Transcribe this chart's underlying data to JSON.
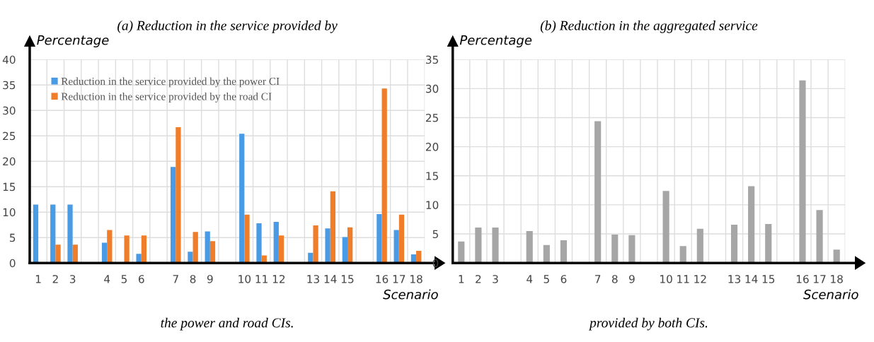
{
  "chart_data": [
    {
      "type": "bar",
      "title": "(a) Reduction in the service provided by",
      "ylabel": "Percentage",
      "xlabel": "Scenario",
      "categories": [
        "1",
        "2",
        "3",
        null,
        "4",
        "5",
        "6",
        null,
        "7",
        "8",
        "9",
        null,
        "10",
        "11",
        "12",
        null,
        "13",
        "14",
        "15",
        null,
        "16",
        "17",
        "18"
      ],
      "series": [
        {
          "name": "Reduction in the service provided by the power CI",
          "color": "#4a9be6",
          "values": [
            11.5,
            11.5,
            11.5,
            null,
            4,
            0,
            1.8,
            null,
            18.9,
            2.2,
            6.2,
            null,
            25.4,
            7.8,
            8.1,
            null,
            2,
            6.8,
            5.1,
            null,
            9.6,
            6.5,
            1.7
          ]
        },
        {
          "name": "Reduction in the service provided by the road CI",
          "color": "#f07d2a",
          "values": [
            0,
            3.6,
            3.6,
            null,
            6.5,
            5.4,
            5.4,
            null,
            26.7,
            6.1,
            4.3,
            null,
            9.5,
            1.5,
            5.4,
            null,
            7.4,
            14.1,
            7,
            null,
            34.3,
            9.5,
            2.4
          ]
        }
      ],
      "ylim": [
        0,
        40
      ],
      "yticks": [
        0,
        5,
        10,
        15,
        20,
        25,
        30,
        35,
        40
      ],
      "grid": true,
      "legend": "top left",
      "annotations": [
        "the power and road CIs."
      ]
    },
    {
      "type": "bar",
      "title": "(b) Reduction in the aggregated service",
      "ylabel": "Percentage",
      "xlabel": "Scenario",
      "categories": [
        "1",
        "2",
        "3",
        null,
        "4",
        "5",
        "6",
        null,
        "7",
        "8",
        "9",
        null,
        "10",
        "11",
        "12",
        null,
        "13",
        "14",
        "15",
        null,
        "16",
        "17",
        "18"
      ],
      "series": [
        {
          "color": "#a6a6a6",
          "values": [
            3.7,
            6.1,
            6.1,
            null,
            5.5,
            3.1,
            3.9,
            null,
            24.4,
            4.9,
            4.8,
            null,
            12.4,
            2.9,
            5.9,
            null,
            6.6,
            13.2,
            6.7,
            null,
            31.4,
            9.1,
            2.3
          ]
        }
      ],
      "ylim": [
        0,
        35
      ],
      "yticks": [
        0,
        5,
        10,
        15,
        20,
        25,
        30,
        35
      ],
      "grid": true,
      "annotations": [
        "provided by both CIs."
      ]
    }
  ]
}
